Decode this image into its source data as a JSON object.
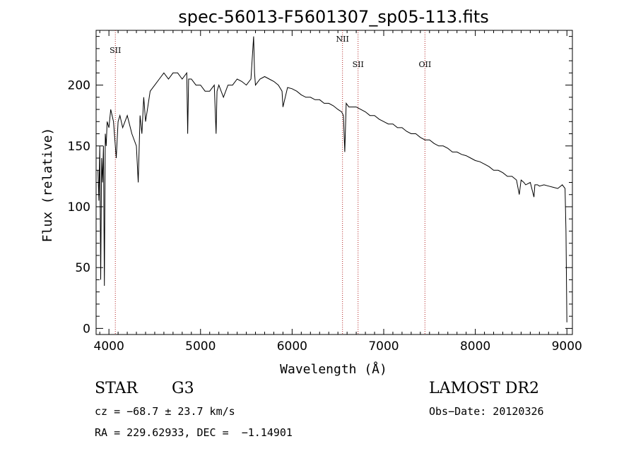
{
  "chart_data": {
    "type": "line",
    "title": "spec-56013-F5601307_sp05-113.fits",
    "xlabel": "Wavelength (Å)",
    "ylabel": "Flux (relative)",
    "xlim": [
      3860,
      9060
    ],
    "ylim": [
      -5,
      245
    ],
    "xticks": [
      4000,
      5000,
      6000,
      7000,
      8000,
      9000
    ],
    "yticks": [
      0,
      50,
      100,
      150,
      200
    ],
    "grid": false,
    "line_color": "#000000",
    "marker_color": "#b22222",
    "markers": [
      {
        "label": "SII",
        "x": 4070
      },
      {
        "label": "NII",
        "x": 6550
      },
      {
        "label": "SII",
        "x": 6720
      },
      {
        "label": "OII",
        "x": 7450
      }
    ],
    "series": [
      {
        "x": [
          3880,
          3890,
          3900,
          3910,
          3920,
          3930,
          3940,
          3950,
          3960,
          3970,
          3980,
          4000,
          4020,
          4050,
          4080,
          4100,
          4120,
          4150,
          4200,
          4250,
          4300,
          4320,
          4340,
          4360,
          4380,
          4400,
          4450,
          4500,
          4550,
          4600,
          4650,
          4700,
          4750,
          4800,
          4850,
          4860,
          4870,
          4900,
          4950,
          5000,
          5050,
          5100,
          5150,
          5170,
          5180,
          5200,
          5250,
          5300,
          5350,
          5400,
          5450,
          5500,
          5550,
          5580,
          5590,
          5600,
          5650,
          5700,
          5750,
          5800,
          5850,
          5890,
          5900,
          5950,
          6000,
          6050,
          6100,
          6150,
          6200,
          6250,
          6300,
          6350,
          6400,
          6450,
          6500,
          6540,
          6560,
          6575,
          6590,
          6620,
          6650,
          6700,
          6750,
          6800,
          6850,
          6900,
          6950,
          7000,
          7050,
          7100,
          7150,
          7200,
          7250,
          7300,
          7350,
          7400,
          7450,
          7500,
          7550,
          7600,
          7650,
          7700,
          7750,
          7800,
          7850,
          7900,
          7950,
          8000,
          8050,
          8100,
          8150,
          8200,
          8250,
          8300,
          8350,
          8400,
          8450,
          8480,
          8500,
          8530,
          8550,
          8600,
          8640,
          8650,
          8680,
          8700,
          8750,
          8800,
          8850,
          8900,
          8950,
          8980,
          8990,
          9000
        ],
        "y": [
          130,
          105,
          150,
          40,
          140,
          120,
          150,
          35,
          160,
          150,
          170,
          165,
          180,
          170,
          140,
          170,
          175,
          165,
          175,
          160,
          150,
          120,
          175,
          160,
          190,
          170,
          195,
          200,
          205,
          210,
          205,
          210,
          210,
          205,
          210,
          160,
          205,
          205,
          200,
          200,
          195,
          195,
          200,
          160,
          195,
          200,
          190,
          200,
          200,
          205,
          203,
          200,
          205,
          240,
          210,
          200,
          205,
          207,
          205,
          203,
          200,
          195,
          182,
          198,
          197,
          195,
          192,
          190,
          190,
          188,
          188,
          185,
          185,
          183,
          180,
          178,
          175,
          145,
          185,
          182,
          182,
          182,
          180,
          178,
          175,
          175,
          172,
          170,
          168,
          168,
          165,
          165,
          162,
          160,
          160,
          157,
          155,
          155,
          152,
          150,
          150,
          148,
          145,
          145,
          143,
          142,
          140,
          138,
          137,
          135,
          133,
          130,
          130,
          128,
          125,
          125,
          122,
          110,
          122,
          120,
          118,
          120,
          108,
          118,
          118,
          117,
          118,
          117,
          116,
          115,
          118,
          115,
          80,
          5
        ]
      }
    ]
  },
  "info": {
    "class_label": "STAR",
    "subclass_label": "G3",
    "survey_label": "LAMOST DR2",
    "cz_line": "cz = −68.7 ± 23.7 km/s",
    "obs_date_line": "Obs−Date: 20120326",
    "coords_line": "RA = 229.62933, DEC =  −1.14901"
  }
}
